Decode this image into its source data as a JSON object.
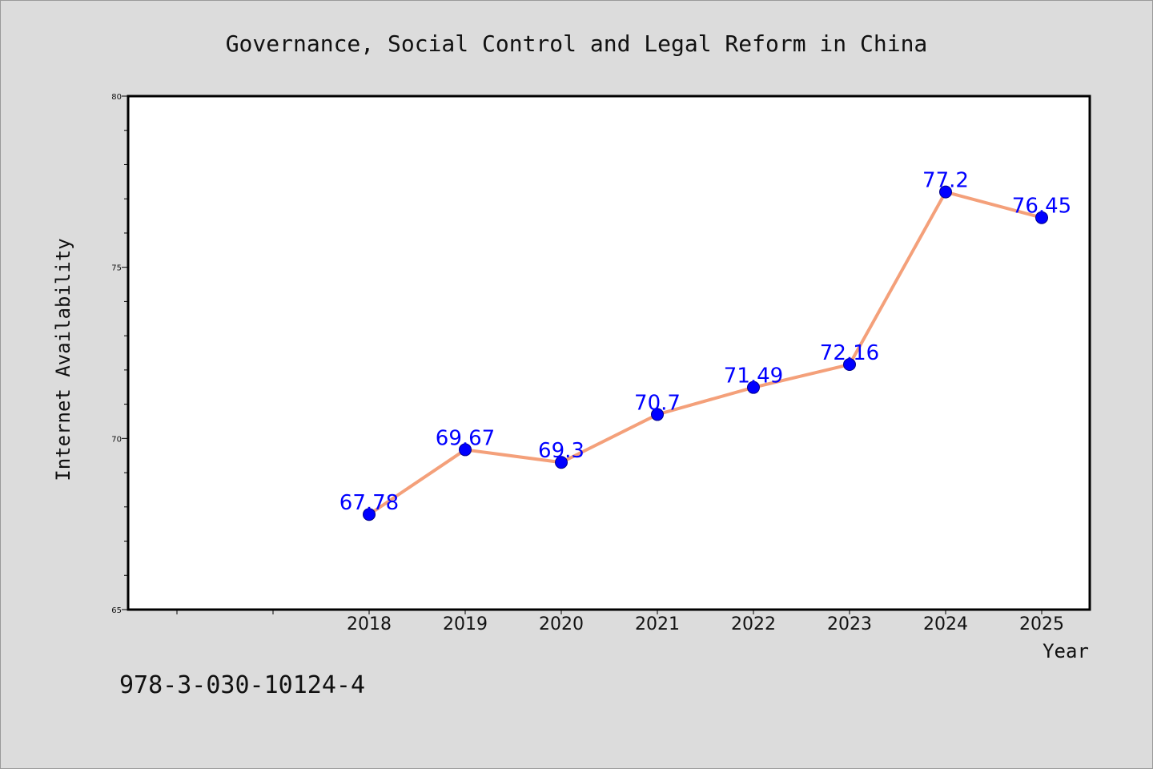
{
  "chart_data": {
    "type": "line",
    "title": "Governance, Social Control and Legal Reform in China",
    "xlabel": "Year",
    "ylabel": "Internet Availability",
    "categories": [
      "2018",
      "2019",
      "2020",
      "2021",
      "2022",
      "2023",
      "2024",
      "2025"
    ],
    "x_slots": [
      "",
      "",
      "2018",
      "2019",
      "2020",
      "2021",
      "2022",
      "2023",
      "2024",
      "2025"
    ],
    "series": [
      {
        "values": [
          67.78,
          69.67,
          69.3,
          70.7,
          71.49,
          72.16,
          77.2,
          76.45
        ],
        "labels": [
          "67.78",
          "69.67",
          "69.3",
          "70.7",
          "71.49",
          "72.16",
          "77.2",
          "76.45"
        ],
        "line_color": "#f4a07a",
        "marker_color": "#0000ff"
      }
    ],
    "ylim": [
      65,
      80
    ],
    "yticks_major": [
      65,
      70,
      75,
      80
    ],
    "yticks_minor_step": 1,
    "grid": false,
    "legend": "none",
    "data_label_color": "#0000ff"
  },
  "footer_text": "978-3-030-10124-4",
  "colors": {
    "background": "#dcdcdc",
    "plot_background": "#ffffff",
    "axis": "#000000"
  }
}
